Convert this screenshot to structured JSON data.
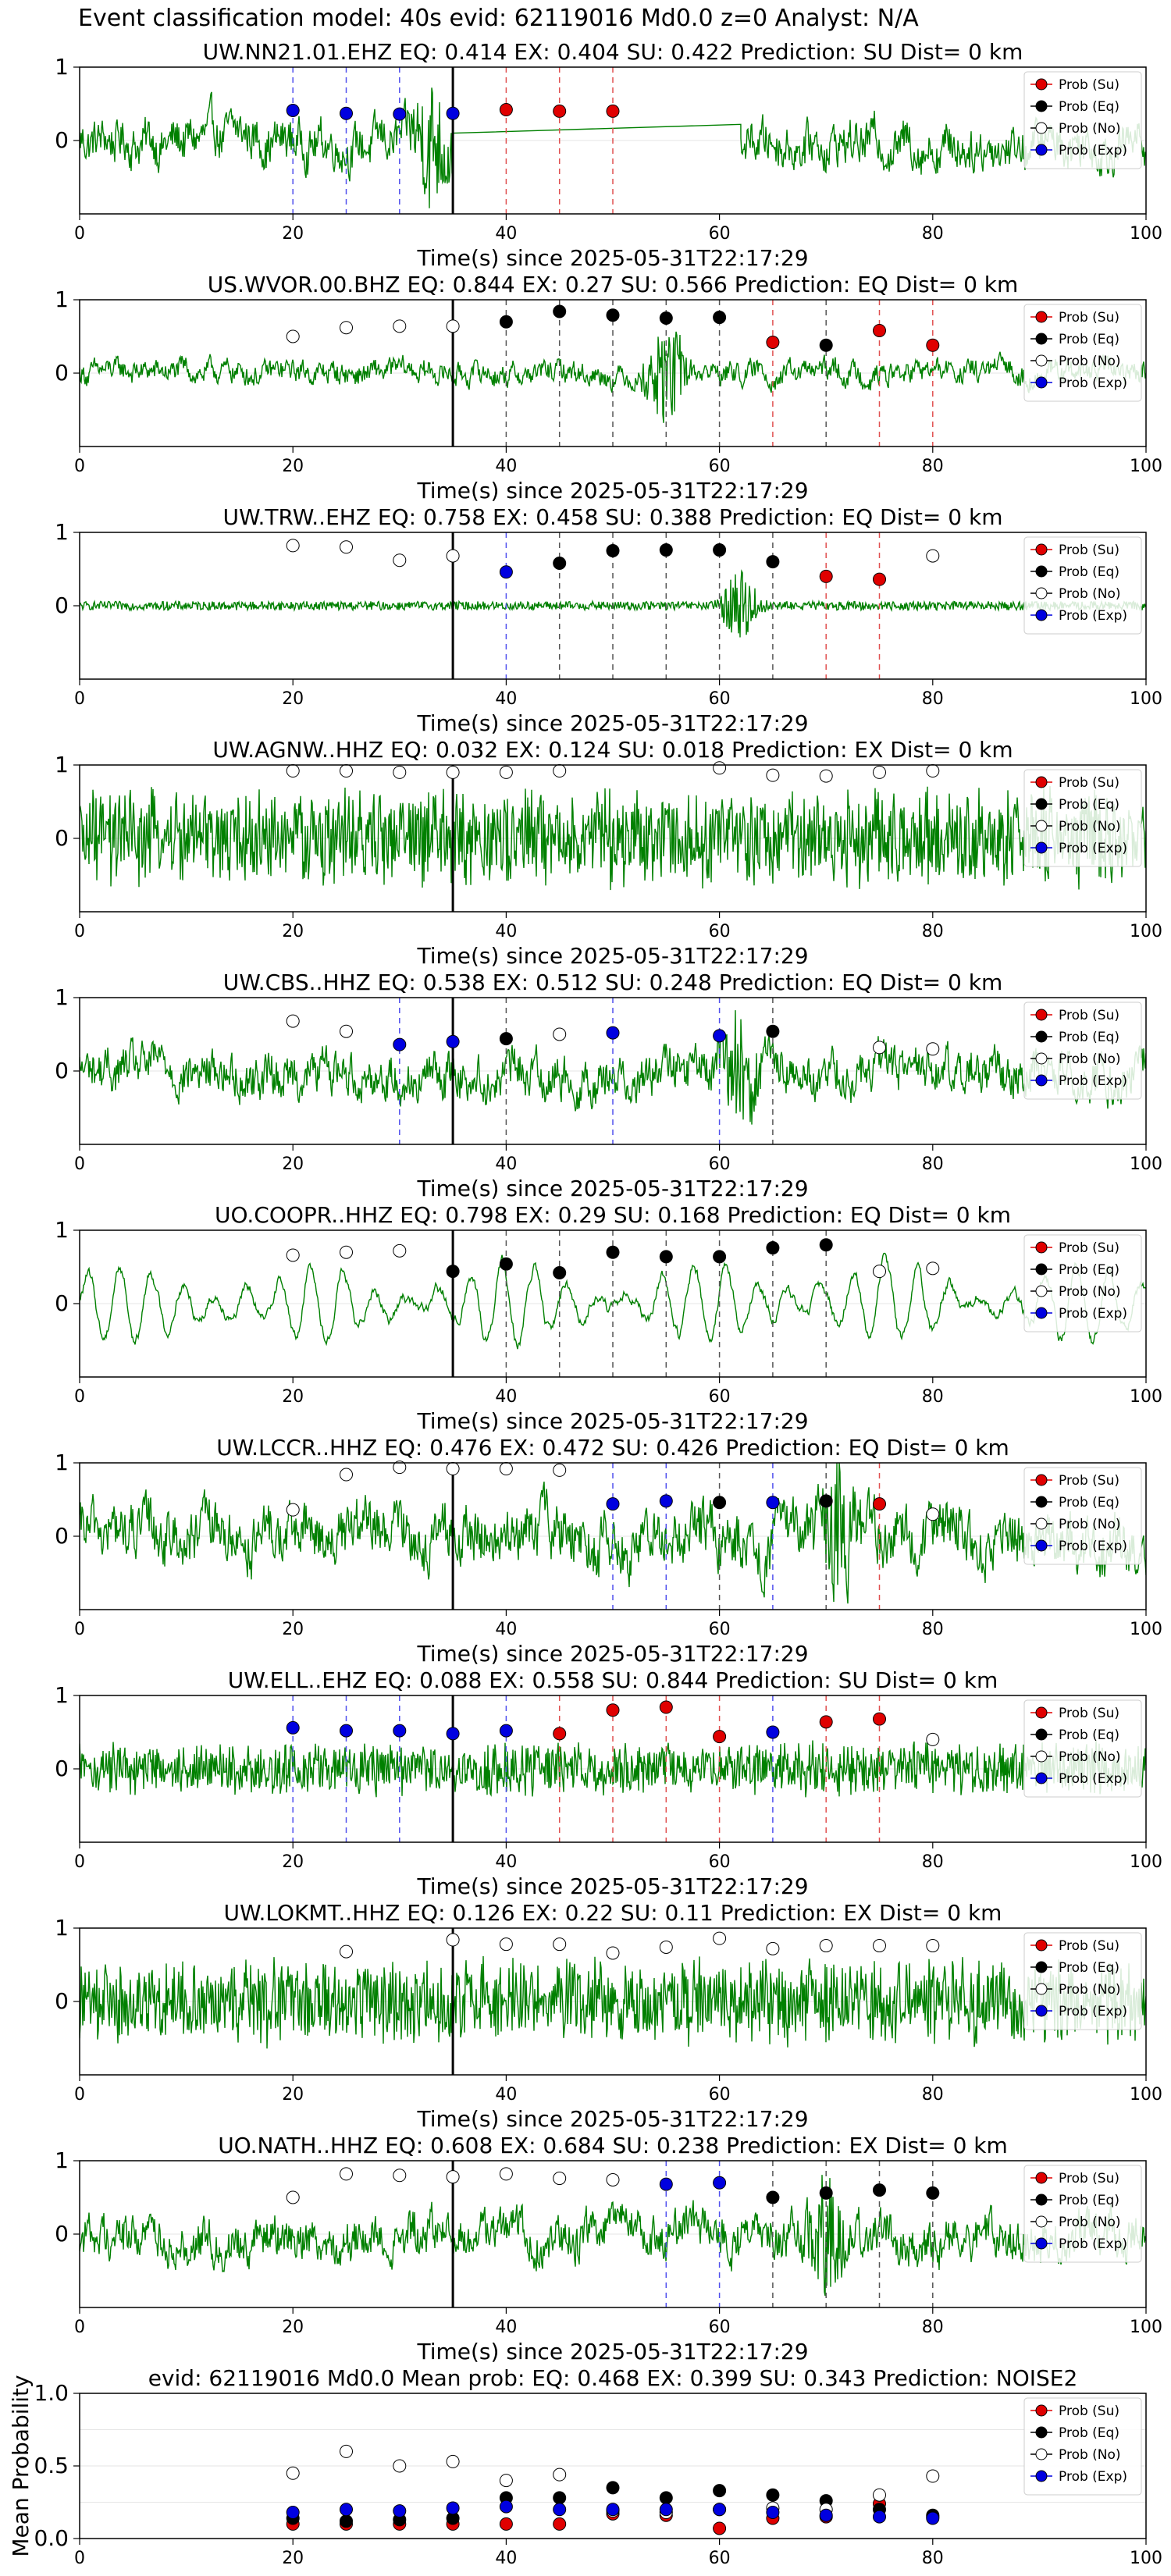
{
  "figure": {
    "title": "Event classification model: 40s evid: 62119016 Md0.0 z=0 Analyst: N/A"
  },
  "legend": {
    "entries": [
      {
        "label": "Prob (Su)",
        "fill": "#e00000",
        "edge": "#000000"
      },
      {
        "label": "Prob (Eq)",
        "fill": "#000000",
        "edge": "#000000"
      },
      {
        "label": "Prob (No)",
        "fill": "#ffffff",
        "edge": "#000000"
      },
      {
        "label": "Prob (Exp)",
        "fill": "#0000e0",
        "edge": "#000000"
      }
    ],
    "placement": "top-right"
  },
  "colors": {
    "waveform": "#008000",
    "su": "#e00000",
    "eq": "#000000",
    "no": "#ffffff",
    "exp": "#0000e0",
    "onset": "#000000",
    "su_dash": "#e05050",
    "eq_dash": "#555555",
    "exp_dash": "#5050ee"
  },
  "chart_data": [
    {
      "type": "line",
      "title": "UW.NN21.01.EHZ   EQ: 0.414  EX: 0.404  SU: 0.422   Prediction: SU    Dist= 0 km",
      "xlabel": "Time(s) since 2025-05-31T22:17:29",
      "ylabel": "",
      "xlim": [
        0,
        100
      ],
      "ylim": [
        -1,
        1
      ],
      "xticks": [
        "0",
        "20",
        "40",
        "60",
        "80",
        "100"
      ],
      "yticks": [
        "0",
        "1"
      ],
      "onset_time": 35,
      "waveform": {
        "kind": "gap",
        "amplitude": 0.35,
        "gap": [
          35,
          62
        ],
        "gap_start_y": 0.1,
        "gap_end_y": 0.22,
        "burst_at": 33
      },
      "series": [
        {
          "name": "Prob (Su)",
          "x": [
            40,
            45,
            50
          ],
          "y": [
            0.42,
            0.4,
            0.4
          ]
        },
        {
          "name": "Prob (Eq)",
          "x": [],
          "y": []
        },
        {
          "name": "Prob (No)",
          "x": [],
          "y": []
        },
        {
          "name": "Prob (Exp)",
          "x": [
            20,
            25,
            30,
            35
          ],
          "y": [
            0.41,
            0.37,
            0.36,
            0.37
          ]
        }
      ]
    },
    {
      "type": "line",
      "title": "US.WVOR.00.BHZ   EQ: 0.844  EX: 0.27  SU: 0.566   Prediction: EQ    Dist= 0 km",
      "xlabel": "Time(s) since 2025-05-31T22:17:29",
      "ylabel": "",
      "xlim": [
        0,
        100
      ],
      "ylim": [
        -1,
        1
      ],
      "xticks": [
        "0",
        "20",
        "40",
        "60",
        "80",
        "100"
      ],
      "yticks": [
        "0",
        "1"
      ],
      "onset_time": 35,
      "waveform": {
        "kind": "smooth",
        "amplitude": 0.18,
        "burst_at": 55
      },
      "series": [
        {
          "name": "Prob (Su)",
          "x": [
            65,
            75,
            80
          ],
          "y": [
            0.42,
            0.58,
            0.38
          ]
        },
        {
          "name": "Prob (Eq)",
          "x": [
            40,
            45,
            50,
            55,
            60,
            70
          ],
          "y": [
            0.7,
            0.84,
            0.79,
            0.75,
            0.76,
            0.38
          ]
        },
        {
          "name": "Prob (No)",
          "x": [
            20,
            25,
            30,
            35
          ],
          "y": [
            0.5,
            0.62,
            0.64,
            0.64
          ]
        },
        {
          "name": "Prob (Exp)",
          "x": [],
          "y": []
        }
      ]
    },
    {
      "type": "line",
      "title": "UW.TRW..EHZ   EQ: 0.758  EX: 0.458  SU: 0.388   Prediction: EQ    Dist= 0 km",
      "xlabel": "Time(s) since 2025-05-31T22:17:29",
      "ylabel": "",
      "xlim": [
        0,
        100
      ],
      "ylim": [
        -1,
        1
      ],
      "xticks": [
        "0",
        "20",
        "40",
        "60",
        "80",
        "100"
      ],
      "yticks": [
        "0",
        "1"
      ],
      "onset_time": 35,
      "waveform": {
        "kind": "quiet",
        "amplitude": 0.06,
        "burst_at": 62
      },
      "series": [
        {
          "name": "Prob (Su)",
          "x": [
            70,
            75
          ],
          "y": [
            0.4,
            0.36
          ]
        },
        {
          "name": "Prob (Eq)",
          "x": [
            45,
            50,
            55,
            60,
            65
          ],
          "y": [
            0.58,
            0.75,
            0.76,
            0.76,
            0.6
          ]
        },
        {
          "name": "Prob (No)",
          "x": [
            20,
            25,
            30,
            35,
            80
          ],
          "y": [
            0.82,
            0.8,
            0.62,
            0.68,
            0.68
          ]
        },
        {
          "name": "Prob (Exp)",
          "x": [
            40
          ],
          "y": [
            0.46
          ]
        }
      ]
    },
    {
      "type": "line",
      "title": "UW.AGNW..HHZ   EQ: 0.032  EX: 0.124  SU: 0.018   Prediction: EX    Dist= 0 km",
      "xlabel": "Time(s) since 2025-05-31T22:17:29",
      "ylabel": "",
      "xlim": [
        0,
        100
      ],
      "ylim": [
        -1,
        1
      ],
      "xticks": [
        "0",
        "20",
        "40",
        "60",
        "80",
        "100"
      ],
      "yticks": [
        "0",
        "1"
      ],
      "onset_time": 35,
      "waveform": {
        "kind": "noisy",
        "amplitude": 0.75
      },
      "series": [
        {
          "name": "Prob (Su)",
          "x": [],
          "y": []
        },
        {
          "name": "Prob (Eq)",
          "x": [],
          "y": []
        },
        {
          "name": "Prob (No)",
          "x": [
            20,
            25,
            30,
            35,
            40,
            45,
            60,
            65,
            70,
            75,
            80
          ],
          "y": [
            0.92,
            0.92,
            0.9,
            0.9,
            0.9,
            0.92,
            0.96,
            0.86,
            0.85,
            0.9,
            0.92
          ]
        },
        {
          "name": "Prob (Exp)",
          "x": [],
          "y": []
        }
      ]
    },
    {
      "type": "line",
      "title": "UW.CBS..HHZ   EQ: 0.538  EX: 0.512  SU: 0.248   Prediction: EQ    Dist= 0 km",
      "xlabel": "Time(s) since 2025-05-31T22:17:29",
      "ylabel": "",
      "xlim": [
        0,
        100
      ],
      "ylim": [
        -1,
        1
      ],
      "xticks": [
        "0",
        "20",
        "40",
        "60",
        "80",
        "100"
      ],
      "yticks": [
        "0",
        "1"
      ],
      "onset_time": 35,
      "waveform": {
        "kind": "smooth",
        "amplitude": 0.35,
        "burst_at": 62
      },
      "series": [
        {
          "name": "Prob (Su)",
          "x": [],
          "y": []
        },
        {
          "name": "Prob (Eq)",
          "x": [
            40,
            65
          ],
          "y": [
            0.44,
            0.54
          ]
        },
        {
          "name": "Prob (No)",
          "x": [
            20,
            25,
            45,
            75,
            80
          ],
          "y": [
            0.68,
            0.54,
            0.5,
            0.32,
            0.3
          ]
        },
        {
          "name": "Prob (Exp)",
          "x": [
            30,
            35,
            50,
            60
          ],
          "y": [
            0.36,
            0.4,
            0.52,
            0.48
          ]
        }
      ]
    },
    {
      "type": "line",
      "title": "UO.COOPR..HHZ   EQ: 0.798  EX: 0.29  SU: 0.168   Prediction: EQ    Dist= 0 km",
      "xlabel": "Time(s) since 2025-05-31T22:17:29",
      "ylabel": "",
      "xlim": [
        0,
        100
      ],
      "ylim": [
        -1,
        1
      ],
      "xticks": [
        "0",
        "20",
        "40",
        "60",
        "80",
        "100"
      ],
      "yticks": [
        "0",
        "1"
      ],
      "onset_time": 35,
      "waveform": {
        "kind": "wave",
        "amplitude": 0.65
      },
      "series": [
        {
          "name": "Prob (Su)",
          "x": [],
          "y": []
        },
        {
          "name": "Prob (Eq)",
          "x": [
            35,
            40,
            45,
            50,
            55,
            60,
            65,
            70
          ],
          "y": [
            0.44,
            0.54,
            0.42,
            0.7,
            0.64,
            0.64,
            0.76,
            0.8
          ]
        },
        {
          "name": "Prob (No)",
          "x": [
            20,
            25,
            30,
            75,
            80
          ],
          "y": [
            0.66,
            0.7,
            0.72,
            0.44,
            0.48
          ]
        },
        {
          "name": "Prob (Exp)",
          "x": [],
          "y": []
        }
      ]
    },
    {
      "type": "line",
      "title": "UW.LCCR..HHZ   EQ: 0.476  EX: 0.472  SU: 0.426   Prediction: EQ    Dist= 0 km",
      "xlabel": "Time(s) since 2025-05-31T22:17:29",
      "ylabel": "",
      "xlim": [
        0,
        100
      ],
      "ylim": [
        -1,
        1
      ],
      "xticks": [
        "0",
        "20",
        "40",
        "60",
        "80",
        "100"
      ],
      "yticks": [
        "0",
        "1"
      ],
      "onset_time": 35,
      "waveform": {
        "kind": "smooth",
        "amplitude": 0.45,
        "burst_at": 71
      },
      "series": [
        {
          "name": "Prob (Su)",
          "x": [
            75
          ],
          "y": [
            0.44
          ]
        },
        {
          "name": "Prob (Eq)",
          "x": [
            60,
            70
          ],
          "y": [
            0.46,
            0.48
          ]
        },
        {
          "name": "Prob (No)",
          "x": [
            20,
            25,
            30,
            35,
            40,
            45,
            80
          ],
          "y": [
            0.36,
            0.84,
            0.94,
            0.92,
            0.92,
            0.9,
            0.3
          ]
        },
        {
          "name": "Prob (Exp)",
          "x": [
            50,
            55,
            65
          ],
          "y": [
            0.44,
            0.48,
            0.46
          ]
        }
      ]
    },
    {
      "type": "line",
      "title": "UW.ELL..EHZ   EQ: 0.088  EX: 0.558  SU: 0.844   Prediction: SU    Dist= 0 km",
      "xlabel": "Time(s) since 2025-05-31T22:17:29",
      "ylabel": "",
      "xlim": [
        0,
        100
      ],
      "ylim": [
        -1,
        1
      ],
      "xticks": [
        "0",
        "20",
        "40",
        "60",
        "80",
        "100"
      ],
      "yticks": [
        "0",
        "1"
      ],
      "onset_time": 35,
      "waveform": {
        "kind": "noisy",
        "amplitude": 0.4
      },
      "series": [
        {
          "name": "Prob (Su)",
          "x": [
            45,
            50,
            55,
            60,
            70,
            75
          ],
          "y": [
            0.48,
            0.8,
            0.84,
            0.44,
            0.64,
            0.68
          ]
        },
        {
          "name": "Prob (Eq)",
          "x": [],
          "y": []
        },
        {
          "name": "Prob (No)",
          "x": [
            80
          ],
          "y": [
            0.4
          ]
        },
        {
          "name": "Prob (Exp)",
          "x": [
            20,
            25,
            30,
            35,
            40,
            65
          ],
          "y": [
            0.56,
            0.52,
            0.52,
            0.48,
            0.52,
            0.5
          ]
        }
      ]
    },
    {
      "type": "line",
      "title": "UW.LOKMT..HHZ   EQ: 0.126  EX: 0.22  SU: 0.11   Prediction: EX    Dist= 0 km",
      "xlabel": "Time(s) since 2025-05-31T22:17:29",
      "ylabel": "",
      "xlim": [
        0,
        100
      ],
      "ylim": [
        -1,
        1
      ],
      "xticks": [
        "0",
        "20",
        "40",
        "60",
        "80",
        "100"
      ],
      "yticks": [
        "0",
        "1"
      ],
      "onset_time": 35,
      "waveform": {
        "kind": "noisy",
        "amplitude": 0.65
      },
      "series": [
        {
          "name": "Prob (Su)",
          "x": [],
          "y": []
        },
        {
          "name": "Prob (Eq)",
          "x": [],
          "y": []
        },
        {
          "name": "Prob (No)",
          "x": [
            25,
            35,
            40,
            45,
            50,
            55,
            60,
            65,
            70,
            75,
            80
          ],
          "y": [
            0.68,
            0.84,
            0.78,
            0.78,
            0.66,
            0.74,
            0.86,
            0.72,
            0.76,
            0.76,
            0.76
          ]
        },
        {
          "name": "Prob (Exp)",
          "x": [],
          "y": []
        }
      ]
    },
    {
      "type": "line",
      "title": "UO.NATH..HHZ   EQ: 0.608  EX: 0.684  SU: 0.238   Prediction: EX    Dist= 0 km",
      "xlabel": "Time(s) since 2025-05-31T22:17:29",
      "ylabel": "",
      "xlim": [
        0,
        100
      ],
      "ylim": [
        -1,
        1
      ],
      "xticks": [
        "0",
        "20",
        "40",
        "60",
        "80",
        "100"
      ],
      "yticks": [
        "0",
        "1"
      ],
      "onset_time": 35,
      "waveform": {
        "kind": "smooth",
        "amplitude": 0.35,
        "burst_at": 70
      },
      "series": [
        {
          "name": "Prob (Su)",
          "x": [],
          "y": []
        },
        {
          "name": "Prob (Eq)",
          "x": [
            65,
            70,
            75,
            80
          ],
          "y": [
            0.5,
            0.56,
            0.6,
            0.56
          ]
        },
        {
          "name": "Prob (No)",
          "x": [
            20,
            25,
            30,
            35,
            40,
            45,
            50
          ],
          "y": [
            0.5,
            0.82,
            0.8,
            0.78,
            0.82,
            0.76,
            0.74
          ]
        },
        {
          "name": "Prob (Exp)",
          "x": [
            55,
            60
          ],
          "y": [
            0.68,
            0.7
          ]
        }
      ]
    },
    {
      "type": "scatter",
      "title": "evid: 62119016  Md0.0   Mean prob:   EQ: 0.468  EX: 0.399  SU: 0.343   Prediction: NOISE2",
      "xlabel": "",
      "ylabel": "Mean Probability",
      "xlim": [
        0,
        100
      ],
      "ylim": [
        0,
        1
      ],
      "xticks": [
        "0",
        "20",
        "40",
        "60",
        "80",
        "100"
      ],
      "yticks": [
        "0.0",
        "0.5",
        "1.0"
      ],
      "series": [
        {
          "name": "Prob (Su)",
          "x": [
            20,
            25,
            30,
            35,
            40,
            45,
            50,
            55,
            60,
            65,
            70,
            75,
            80
          ],
          "y": [
            0.1,
            0.1,
            0.1,
            0.1,
            0.1,
            0.1,
            0.17,
            0.16,
            0.07,
            0.14,
            0.15,
            0.24,
            0.15
          ]
        },
        {
          "name": "Prob (Eq)",
          "x": [
            20,
            25,
            30,
            35,
            40,
            45,
            50,
            55,
            60,
            65,
            70,
            75,
            80
          ],
          "y": [
            0.14,
            0.12,
            0.13,
            0.14,
            0.28,
            0.28,
            0.35,
            0.28,
            0.33,
            0.3,
            0.26,
            0.2,
            0.16
          ]
        },
        {
          "name": "Prob (No)",
          "x": [
            20,
            25,
            30,
            35,
            40,
            45,
            50,
            55,
            60,
            65,
            70,
            75,
            80
          ],
          "y": [
            0.45,
            0.6,
            0.5,
            0.53,
            0.4,
            0.44,
            0.19,
            0.18,
            0.2,
            0.21,
            0.2,
            0.3,
            0.43
          ]
        },
        {
          "name": "Prob (Exp)",
          "x": [
            20,
            25,
            30,
            35,
            40,
            45,
            50,
            55,
            60,
            65,
            70,
            75,
            80
          ],
          "y": [
            0.18,
            0.2,
            0.19,
            0.21,
            0.22,
            0.2,
            0.2,
            0.2,
            0.2,
            0.18,
            0.16,
            0.15,
            0.14
          ]
        }
      ]
    }
  ]
}
